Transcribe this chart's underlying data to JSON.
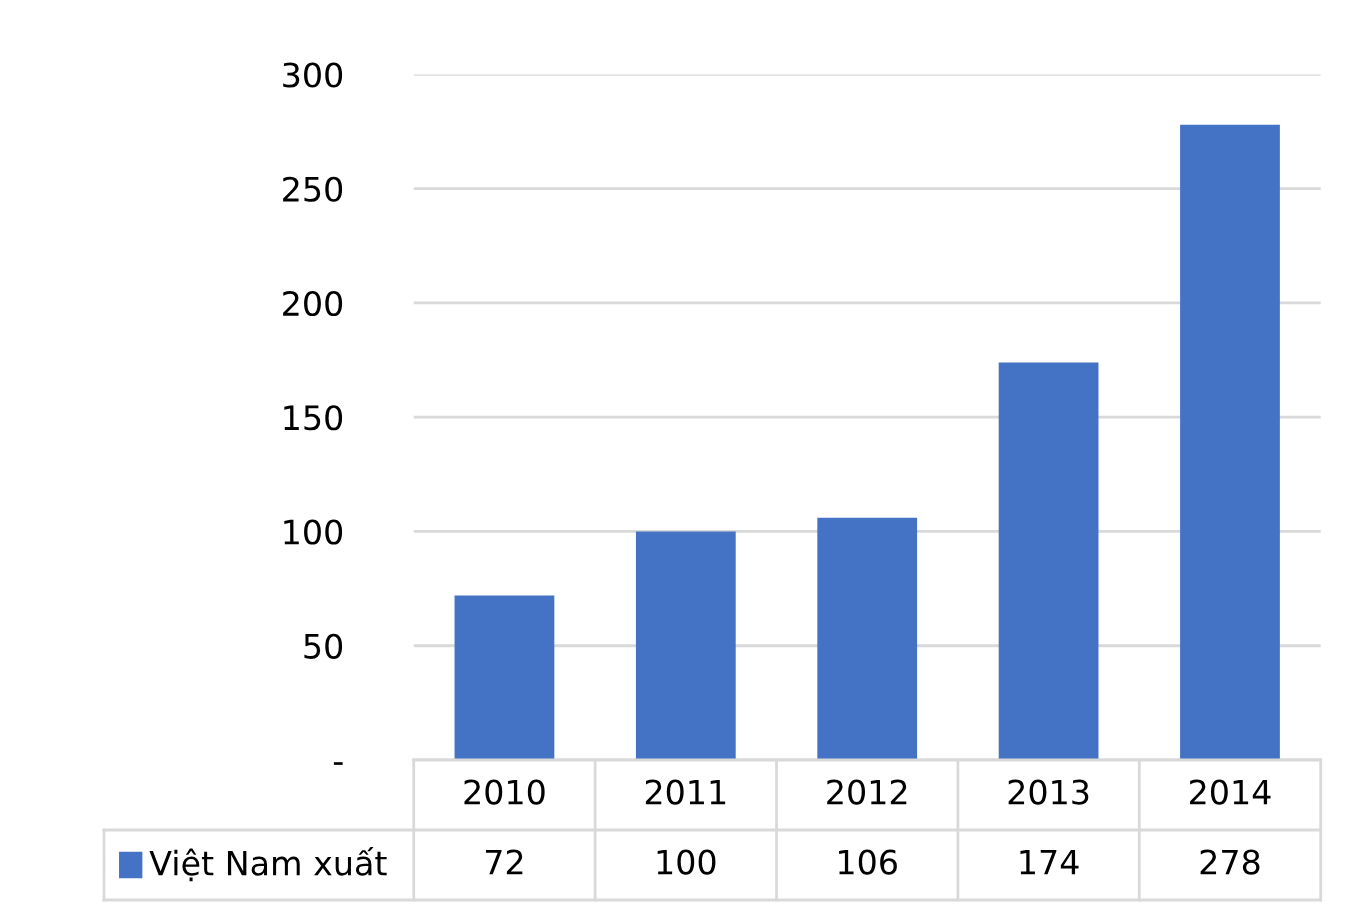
{
  "chart_data": {
    "type": "bar",
    "categories": [
      "2010",
      "2011",
      "2012",
      "2013",
      "2014"
    ],
    "series": [
      {
        "name": "Việt Nam xuất",
        "color": "#4472c4",
        "values": [
          72,
          100,
          106,
          174,
          278
        ]
      }
    ],
    "ylim": [
      0,
      300
    ],
    "yticks": [
      {
        "value": 0,
        "label": "-"
      },
      50,
      100,
      150,
      200,
      250,
      300
    ],
    "grid": "y",
    "data_labels": true,
    "legend": "bottom"
  }
}
